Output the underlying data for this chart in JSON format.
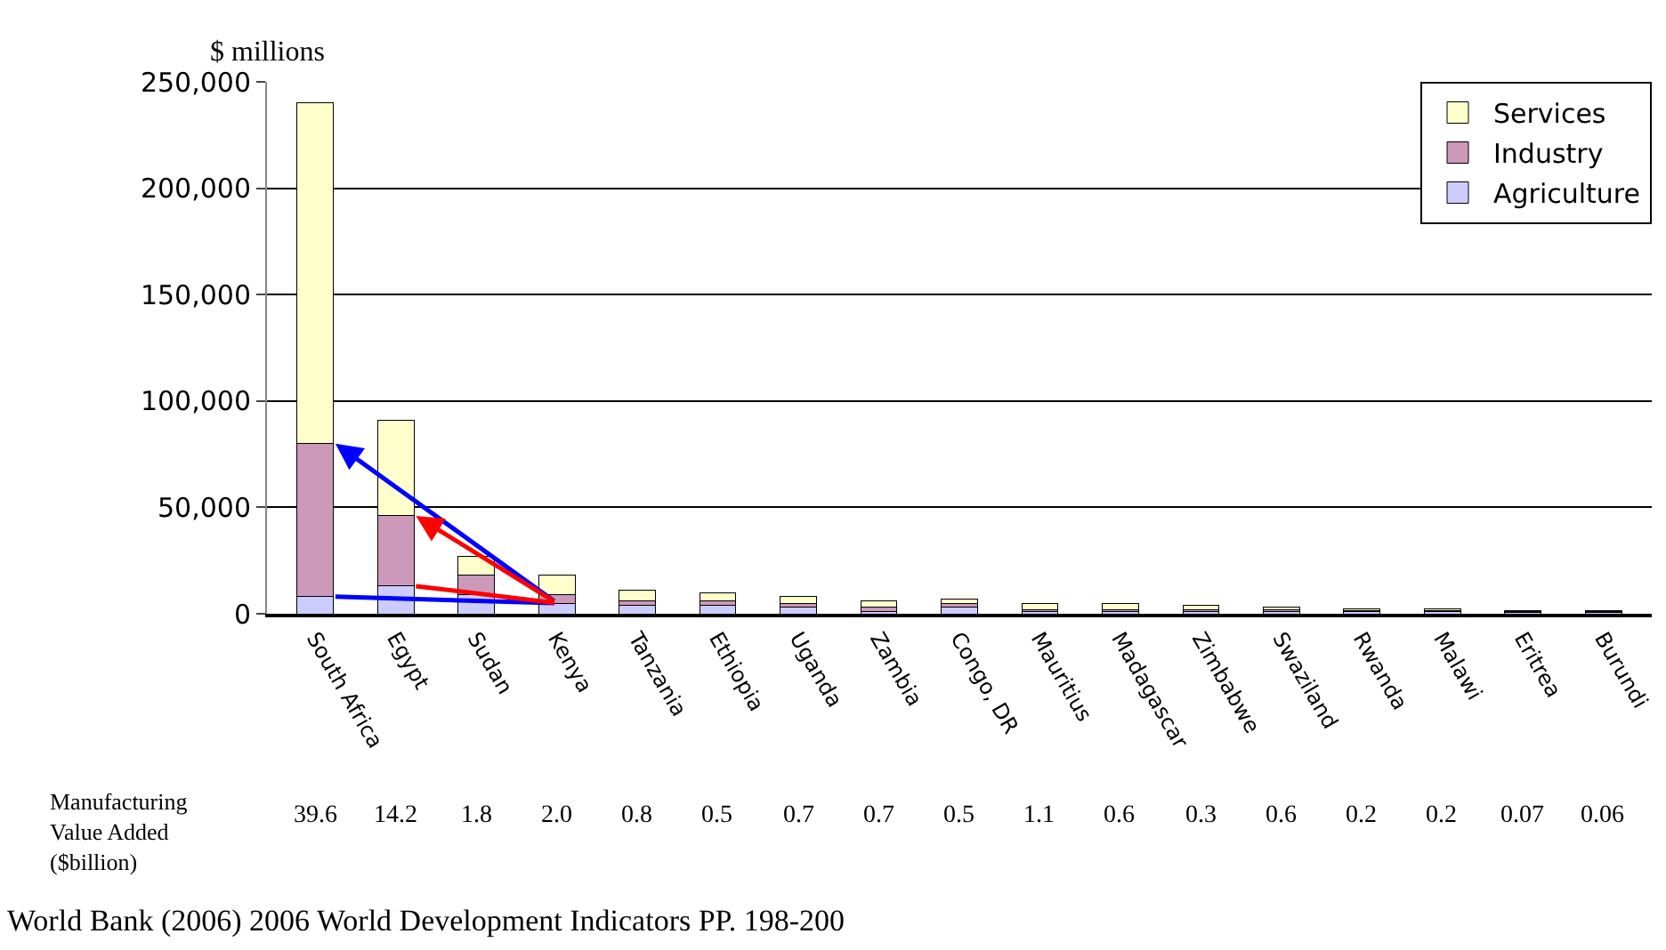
{
  "chart_data": {
    "type": "bar",
    "stacked": true,
    "ylabel": "$ millions",
    "categories": [
      "South Africa",
      "Egypt",
      "Sudan",
      "Kenya",
      "Tanzania",
      "Ethiopia",
      "Uganda",
      "Zambia",
      "Congo, DR",
      "Mauritius",
      "Madagascar",
      "Zimbabwe",
      "Swaziland",
      "Rwanda",
      "Malawi",
      "Eritrea",
      "Burundi"
    ],
    "series": [
      {
        "name": "Agriculture",
        "color": "#ccccff",
        "values": [
          8000,
          13000,
          9000,
          5000,
          4000,
          4000,
          3000,
          1000,
          3000,
          1000,
          1000,
          1000,
          1000,
          1000,
          1000,
          500,
          500
        ]
      },
      {
        "name": "Industry",
        "color": "#cc99bb",
        "values": [
          72000,
          33000,
          9000,
          4000,
          2000,
          2000,
          2000,
          2000,
          2000,
          1000,
          1000,
          1000,
          1000,
          500,
          500,
          500,
          500
        ]
      },
      {
        "name": "Services",
        "color": "#ffffcc",
        "values": [
          160000,
          45000,
          9000,
          9000,
          5000,
          4000,
          3000,
          3000,
          2000,
          3000,
          3000,
          2000,
          1000,
          1000,
          1000,
          500,
          500
        ]
      }
    ],
    "ylim": [
      0,
      250000
    ],
    "yticks": [
      {
        "value": 0,
        "label": "0"
      },
      {
        "value": 50000,
        "label": "50,000"
      },
      {
        "value": 100000,
        "label": "100,000"
      },
      {
        "value": 150000,
        "label": "150,000"
      },
      {
        "value": 200000,
        "label": "200,000"
      },
      {
        "value": 250000,
        "label": "250,000"
      }
    ],
    "grid": "y",
    "legend": "top right",
    "annotations": [
      "Manufacturing\nValue Added\n($billion)",
      "39.6",
      "14.2",
      "1.8",
      "2.0",
      "0.8",
      "0.5",
      "0.7",
      "0.7",
      "0.5",
      "1.1",
      "0.6",
      "0.3",
      "0.6",
      "0.2",
      "0.2",
      "0.07",
      "0.06",
      "World Bank (2006) 2006 World Development Indicators PP. 198-200"
    ]
  }
}
